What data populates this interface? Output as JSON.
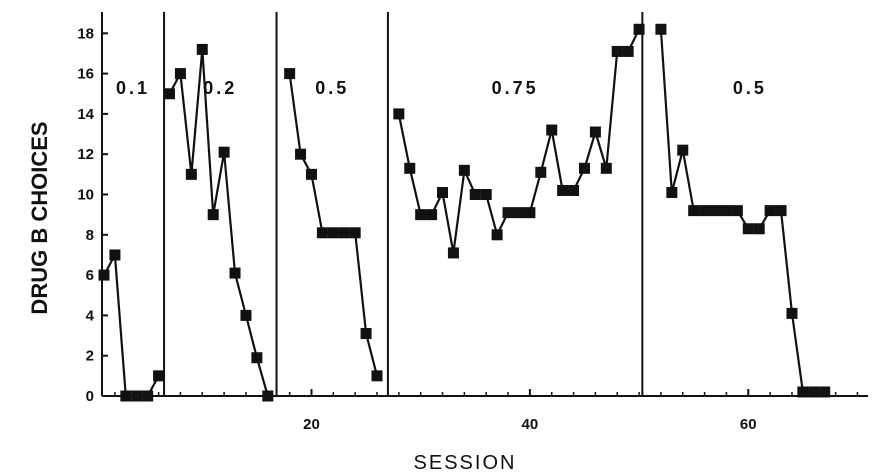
{
  "chart_data": {
    "type": "line",
    "title": "",
    "xlabel": "SESSION",
    "ylabel": "DRUG B CHOICES",
    "xlim": [
      0,
      70
    ],
    "ylim": [
      0,
      19
    ],
    "x_ticks": [
      20,
      40,
      60
    ],
    "y_ticks": [
      0,
      2,
      4,
      6,
      8,
      10,
      12,
      14,
      16,
      18
    ],
    "grid": false,
    "legend": "none",
    "phase_boundaries": [
      6.5,
      16.8,
      27.0,
      50.3
    ],
    "phases": [
      {
        "label": "0.1",
        "x": [
          1,
          2,
          3,
          4,
          5,
          6
        ],
        "values": [
          6,
          7,
          0,
          0,
          0,
          1
        ]
      },
      {
        "label": "0.2",
        "x": [
          7,
          8,
          9,
          10,
          11,
          12,
          13,
          14,
          15,
          16
        ],
        "values": [
          15,
          16,
          11,
          17.2,
          9,
          12.1,
          6.1,
          4,
          1.9,
          0
        ]
      },
      {
        "label": "0.5",
        "x": [
          18,
          19,
          20,
          21,
          22,
          23,
          24,
          25,
          26
        ],
        "values": [
          16,
          12,
          11,
          8.1,
          8.1,
          8.1,
          8.1,
          3.1,
          1
        ]
      },
      {
        "label": "0.75",
        "x": [
          28,
          29,
          30,
          31,
          32,
          33,
          34,
          35,
          36,
          37,
          38,
          39,
          40,
          41,
          42,
          43,
          44,
          45,
          46,
          47,
          48,
          49,
          50
        ],
        "values": [
          14,
          11.3,
          9,
          9,
          10.1,
          7.1,
          11.2,
          10,
          10,
          8,
          9.1,
          9.1,
          9.1,
          11.1,
          13.2,
          10.2,
          10.2,
          11.3,
          13.1,
          11.3,
          17.1,
          17.1,
          18.2
        ]
      },
      {
        "label": "0.5",
        "x": [
          52,
          53,
          54,
          55,
          56,
          57,
          58,
          59,
          60,
          61,
          62,
          63,
          64,
          65,
          66,
          67
        ],
        "values": [
          18.2,
          10.1,
          12.2,
          9.2,
          9.2,
          9.2,
          9.2,
          9.2,
          8.3,
          8.3,
          9.2,
          9.2,
          4.1,
          0.2,
          0.2,
          0.2
        ]
      }
    ]
  }
}
